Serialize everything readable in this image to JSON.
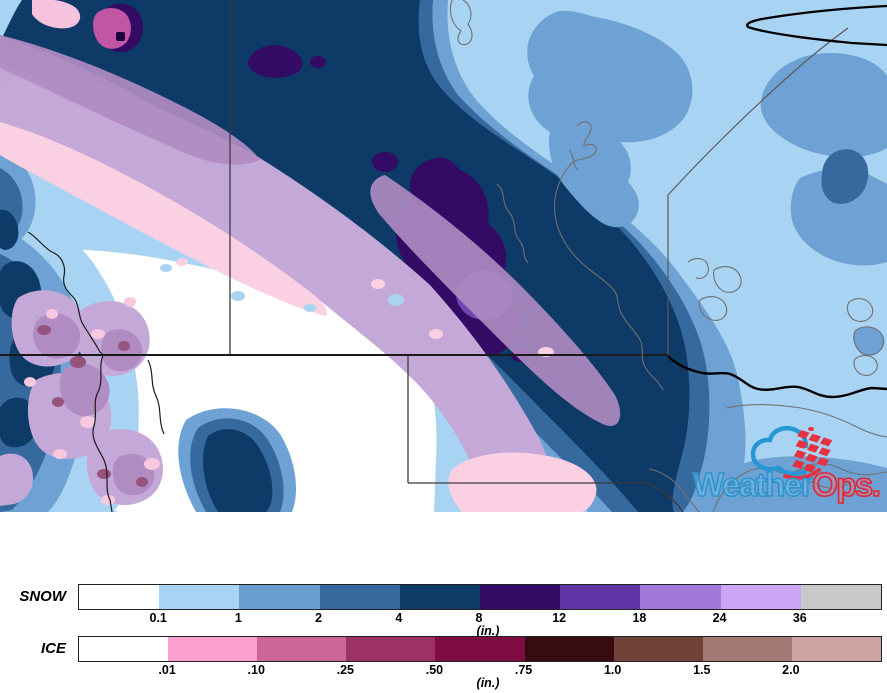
{
  "logo": {
    "brand_part1": "Weather",
    "brand_part2": "Ops.",
    "brand_color_blue": "#2e93cc",
    "brand_color_red": "#e02535"
  },
  "legend": {
    "snow": {
      "label": "SNOW",
      "unit": "(in.)",
      "ticks": [
        "0.1",
        "1",
        "2",
        "4",
        "8",
        "12",
        "18",
        "24",
        "36"
      ],
      "colors": [
        "#ffffff",
        "#a9d3f5",
        "#699fd0",
        "#36689d",
        "#0d3a67",
        "#330a64",
        "#5f35a5",
        "#a078d8",
        "#cda5f7",
        "#c9c9c9"
      ]
    },
    "ice": {
      "label": "ICE",
      "unit": "(in.)",
      "ticks": [
        ".01",
        ".10",
        ".25",
        ".50",
        ".75",
        "1.0",
        "1.5",
        "2.0"
      ],
      "colors": [
        "#ffffff",
        "#fa9fd0",
        "#cc6699",
        "#9e3068",
        "#7d0d40",
        "#380b10",
        "#714239",
        "#a17a74",
        "#cfa3a1"
      ]
    }
  },
  "map_colors": {
    "snow_0_1_to_1": "#a9d3f3",
    "snow_1_to_2": "#6ea2d4",
    "snow_2_to_4": "#36699e",
    "snow_4_to_8": "#0d3a66",
    "snow_8_to_12": "#330a64",
    "snow_12_to_18": "#7048ae",
    "ice_light_pink": "#fbd0e3",
    "ice_lavender": "#c4a8d8",
    "ice_mauve": "#b08cc2",
    "ice_gray_mauve": "#a88db9",
    "ice_magenta": "#c355a5",
    "ice_plum": "#96537e",
    "boundary_line": "#1a1a1a",
    "shoreline": "#707070"
  }
}
